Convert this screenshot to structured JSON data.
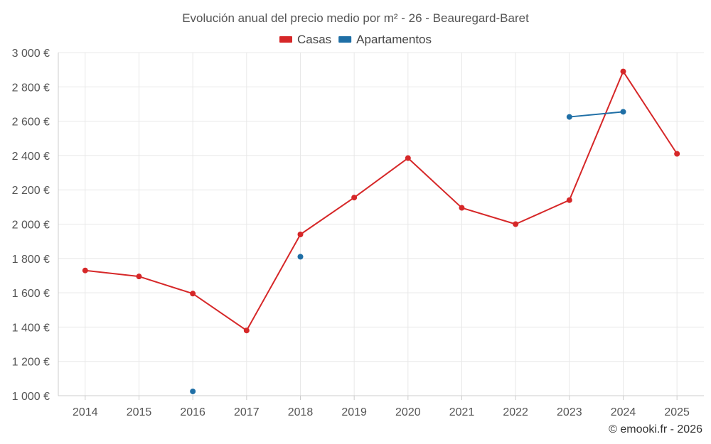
{
  "chart_data": {
    "type": "line",
    "title": "Evolución anual del precio medio por m² - 26 - Beauregard-Baret",
    "categories": [
      "2014",
      "2015",
      "2016",
      "2017",
      "2018",
      "2019",
      "2020",
      "2021",
      "2022",
      "2023",
      "2024",
      "2025"
    ],
    "ylim": [
      1000,
      3000
    ],
    "yticks": [
      1000,
      1200,
      1400,
      1600,
      1800,
      2000,
      2200,
      2400,
      2600,
      2800,
      3000
    ],
    "ytick_labels": [
      "1 000 €",
      "1 200 €",
      "1 400 €",
      "1 600 €",
      "1 800 €",
      "2 000 €",
      "2 200 €",
      "2 400 €",
      "2 600 €",
      "2 800 €",
      "3 000 €"
    ],
    "grid": true,
    "legend_position": "top-center",
    "series": [
      {
        "name": "Casas",
        "color": "#d62728",
        "values": [
          1730,
          1695,
          1595,
          1380,
          1940,
          2155,
          2385,
          2095,
          2000,
          2140,
          2890,
          2410
        ]
      },
      {
        "name": "Apartamentos",
        "color": "#1f6fa6",
        "values": [
          null,
          null,
          1025,
          null,
          1810,
          null,
          null,
          null,
          null,
          2625,
          2655,
          null
        ]
      }
    ],
    "credit": "© emooki.fr - 2026"
  }
}
